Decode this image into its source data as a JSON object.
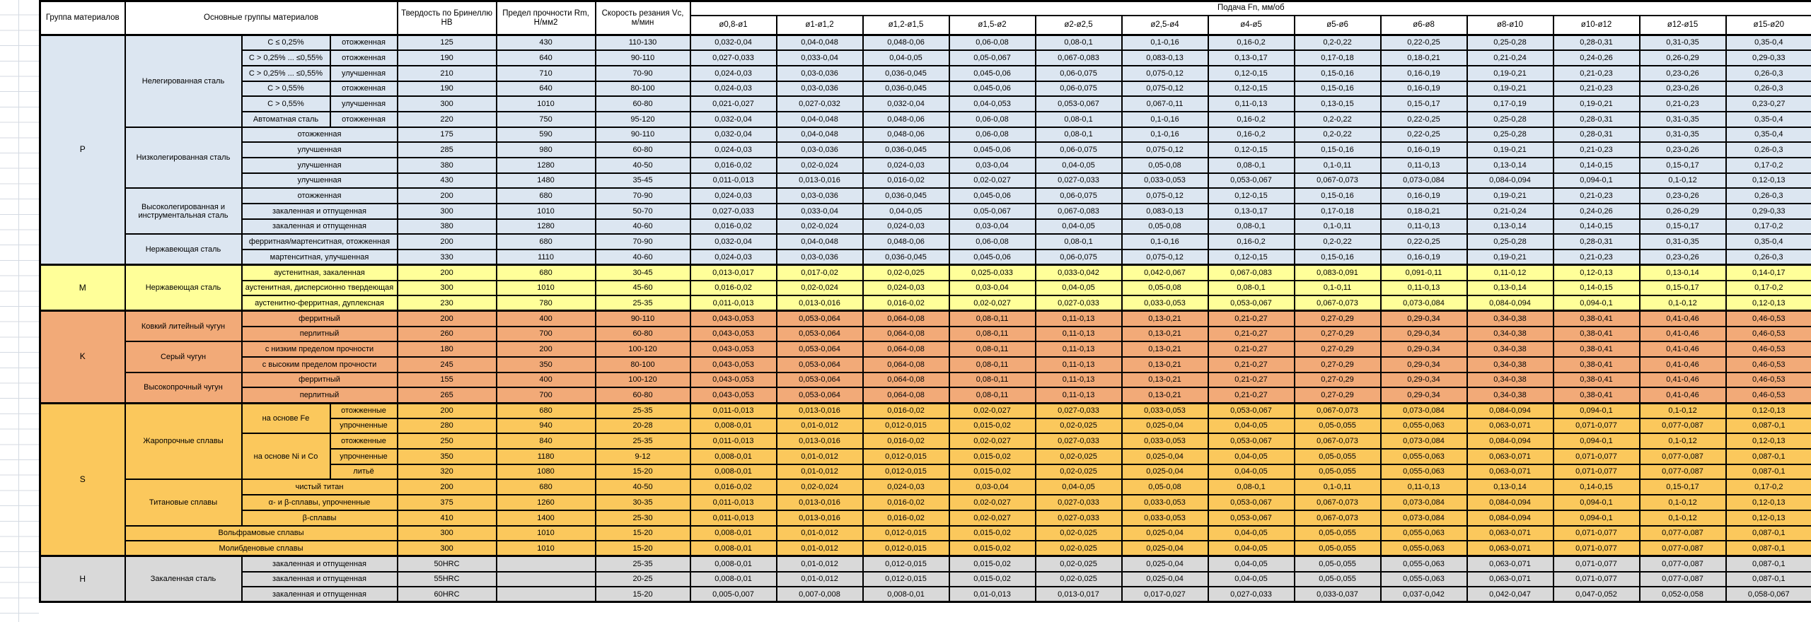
{
  "header": {
    "col_group": "Группа материалов",
    "col_materials": "Основные группы материалов",
    "col_hardness": "Твердость по Бринеллю HB",
    "col_strength": "Предел прочности Rm, Н/мм2",
    "col_speed": "Скорость резания Vc, м/мин",
    "col_feed": "Подача Fn, мм/об"
  },
  "table": {
    "diameters": [
      "ø0,8-ø1",
      "ø1-ø1,2",
      "ø1,2-ø1,5",
      "ø1,5-ø2",
      "ø2-ø2,5",
      "ø2,5-ø4",
      "ø4-ø5",
      "ø5-ø6",
      "ø6-ø8",
      "ø8-ø10",
      "ø10-ø12",
      "ø12-ø15",
      "ø15-ø20"
    ],
    "section_colors": {
      "p": "#DCE6F1",
      "m": "#FFFF99",
      "k": "#F2AA78",
      "s": "#FBC85C",
      "h": "#D9D9D9"
    },
    "feed_series": {
      "A": [
        "0,032-0,04",
        "0,04-0,048",
        "0,048-0,06",
        "0,06-0,08",
        "0,08-0,1",
        "0,1-0,16",
        "0,16-0,2",
        "0,2-0,22",
        "0,22-0,25",
        "0,25-0,28",
        "0,28-0,31",
        "0,31-0,35",
        "0,35-0,4"
      ],
      "B": [
        "0,027-0,033",
        "0,033-0,04",
        "0,04-0,05",
        "0,05-0,067",
        "0,067-0,083",
        "0,083-0,13",
        "0,13-0,17",
        "0,17-0,18",
        "0,18-0,21",
        "0,21-0,24",
        "0,24-0,26",
        "0,26-0,29",
        "0,29-0,33"
      ],
      "C": [
        "0,024-0,03",
        "0,03-0,036",
        "0,036-0,045",
        "0,045-0,06",
        "0,06-0,075",
        "0,075-0,12",
        "0,12-0,15",
        "0,15-0,16",
        "0,16-0,19",
        "0,19-0,21",
        "0,21-0,23",
        "0,23-0,26",
        "0,26-0,3"
      ],
      "D": [
        "0,021-0,027",
        "0,027-0,032",
        "0,032-0,04",
        "0,04-0,053",
        "0,053-0,067",
        "0,067-0,11",
        "0,11-0,13",
        "0,13-0,15",
        "0,15-0,17",
        "0,17-0,19",
        "0,19-0,21",
        "0,21-0,23",
        "0,23-0,27"
      ],
      "E": [
        "0,016-0,02",
        "0,02-0,024",
        "0,024-0,03",
        "0,03-0,04",
        "0,04-0,05",
        "0,05-0,08",
        "0,08-0,1",
        "0,1-0,11",
        "0,11-0,13",
        "0,13-0,14",
        "0,14-0,15",
        "0,15-0,17",
        "0,17-0,2"
      ],
      "F": [
        "0,011-0,013",
        "0,013-0,016",
        "0,016-0,02",
        "0,02-0,027",
        "0,027-0,033",
        "0,033-0,053",
        "0,053-0,067",
        "0,067-0,073",
        "0,073-0,084",
        "0,084-0,094",
        "0,094-0,1",
        "0,1-0,12",
        "0,12-0,13"
      ],
      "G": [
        "0,013-0,017",
        "0,017-0,02",
        "0,02-0,025",
        "0,025-0,033",
        "0,033-0,042",
        "0,042-0,067",
        "0,067-0,083",
        "0,083-0,091",
        "0,091-0,11",
        "0,11-0,12",
        "0,12-0,13",
        "0,13-0,14",
        "0,14-0,17"
      ],
      "H": [
        "0,043-0,053",
        "0,053-0,064",
        "0,064-0,08",
        "0,08-0,11",
        "0,11-0,13",
        "0,13-0,21",
        "0,21-0,27",
        "0,27-0,29",
        "0,29-0,34",
        "0,34-0,38",
        "0,38-0,41",
        "0,41-0,46",
        "0,46-0,53"
      ],
      "I": [
        "0,008-0,01",
        "0,01-0,012",
        "0,012-0,015",
        "0,015-0,02",
        "0,02-0,025",
        "0,025-0,04",
        "0,04-0,05",
        "0,05-0,055",
        "0,055-0,063",
        "0,063-0,071",
        "0,071-0,077",
        "0,077-0,087",
        "0,087-0,1"
      ],
      "J": [
        "0,005-0,007",
        "0,007-0,008",
        "0,008-0,01",
        "0,01-0,013",
        "0,013-0,017",
        "0,017-0,027",
        "0,027-0,033",
        "0,033-0,037",
        "0,037-0,042",
        "0,042-0,047",
        "0,047-0,052",
        "0,052-0,058",
        "0,058-0,067"
      ]
    },
    "rows": [
      {
        "sec": "p",
        "labels": [
          {
            "t": "P",
            "rs": 15,
            "c": "grp"
          },
          {
            "t": "Нелегированная сталь",
            "rs": 6,
            "c": "mat"
          },
          {
            "t": "C ≤ 0,25%"
          },
          {
            "t": "отожженная"
          }
        ],
        "hb": "125",
        "rm": "430",
        "vc": "110-130",
        "feeds": "A"
      },
      {
        "sec": "p",
        "labels": [
          {
            "t": "C > 0,25% ... ≤0,55%"
          },
          {
            "t": "отожженная"
          }
        ],
        "hb": "190",
        "rm": "640",
        "vc": "90-110",
        "feeds": "B"
      },
      {
        "sec": "p",
        "labels": [
          {
            "t": "C > 0,25% ... ≤0,55%"
          },
          {
            "t": "улучшенная"
          }
        ],
        "hb": "210",
        "rm": "710",
        "vc": "70-90",
        "feeds": "C"
      },
      {
        "sec": "p",
        "labels": [
          {
            "t": "C > 0,55%"
          },
          {
            "t": "отожженная"
          }
        ],
        "hb": "190",
        "rm": "640",
        "vc": "80-100",
        "feeds": "C"
      },
      {
        "sec": "p",
        "labels": [
          {
            "t": "C > 0,55%"
          },
          {
            "t": "улучшенная"
          }
        ],
        "hb": "300",
        "rm": "1010",
        "vc": "60-80",
        "feeds": "D"
      },
      {
        "sec": "p",
        "labels": [
          {
            "t": "Автоматная сталь"
          },
          {
            "t": "отожженная"
          }
        ],
        "hb": "220",
        "rm": "750",
        "vc": "95-120",
        "feeds": "A"
      },
      {
        "sec": "p",
        "labels": [
          {
            "t": "Низколегированная сталь",
            "rs": 4,
            "c": "mat"
          },
          {
            "t": "отожженная",
            "cs": 2
          }
        ],
        "hb": "175",
        "rm": "590",
        "vc": "90-110",
        "feeds": "A"
      },
      {
        "sec": "p",
        "labels": [
          {
            "t": "улучшенная",
            "cs": 2
          }
        ],
        "hb": "285",
        "rm": "980",
        "vc": "60-80",
        "feeds": "C"
      },
      {
        "sec": "p",
        "labels": [
          {
            "t": "улучшенная",
            "cs": 2
          }
        ],
        "hb": "380",
        "rm": "1280",
        "vc": "40-50",
        "feeds": "E"
      },
      {
        "sec": "p",
        "labels": [
          {
            "t": "улучшенная",
            "cs": 2
          }
        ],
        "hb": "430",
        "rm": "1480",
        "vc": "35-45",
        "feeds": "F"
      },
      {
        "sec": "p",
        "labels": [
          {
            "t": "Высоколегированная и инструментальная сталь",
            "rs": 3,
            "c": "mat"
          },
          {
            "t": "отожженная",
            "cs": 2
          }
        ],
        "hb": "200",
        "rm": "680",
        "vc": "70-90",
        "feeds": "C"
      },
      {
        "sec": "p",
        "labels": [
          {
            "t": "закаленная и отпущенная",
            "cs": 2
          }
        ],
        "hb": "300",
        "rm": "1010",
        "vc": "50-70",
        "feeds": "B"
      },
      {
        "sec": "p",
        "labels": [
          {
            "t": "закаленная и отпущенная",
            "cs": 2
          }
        ],
        "hb": "380",
        "rm": "1280",
        "vc": "40-60",
        "feeds": "E"
      },
      {
        "sec": "p",
        "labels": [
          {
            "t": "Нержавеющая сталь",
            "rs": 2,
            "c": "mat"
          },
          {
            "t": "ферритная/мартенситная, отожженная",
            "cs": 2
          }
        ],
        "hb": "200",
        "rm": "680",
        "vc": "70-90",
        "feeds": "A"
      },
      {
        "sec": "p",
        "labels": [
          {
            "t": "мартенситная, улучшенная",
            "cs": 2
          }
        ],
        "hb": "330",
        "rm": "1110",
        "vc": "40-60",
        "feeds": "C"
      },
      {
        "sec": "m",
        "labels": [
          {
            "t": "M",
            "rs": 3,
            "c": "grp"
          },
          {
            "t": "Нержавеющая сталь",
            "rs": 3,
            "c": "mat"
          },
          {
            "t": "аустенитная, закаленная",
            "cs": 2
          }
        ],
        "hb": "200",
        "rm": "680",
        "vc": "30-45",
        "feeds": "G"
      },
      {
        "sec": "m",
        "labels": [
          {
            "t": "аустенитная, дисперсионно твердеющая",
            "cs": 2
          }
        ],
        "hb": "300",
        "rm": "1010",
        "vc": "45-60",
        "feeds": "E"
      },
      {
        "sec": "m",
        "labels": [
          {
            "t": "аустенитно-ферритная, дуплексная",
            "cs": 2
          }
        ],
        "hb": "230",
        "rm": "780",
        "vc": "25-35",
        "feeds": "F"
      },
      {
        "sec": "k",
        "labels": [
          {
            "t": "K",
            "rs": 6,
            "c": "grp"
          },
          {
            "t": "Ковкий литейный чугун",
            "rs": 2,
            "c": "mat"
          },
          {
            "t": "ферритный",
            "cs": 2
          }
        ],
        "hb": "200",
        "rm": "400",
        "vc": "90-110",
        "feeds": "H"
      },
      {
        "sec": "k",
        "labels": [
          {
            "t": "перлитный",
            "cs": 2
          }
        ],
        "hb": "260",
        "rm": "700",
        "vc": "60-80",
        "feeds": "H"
      },
      {
        "sec": "k",
        "labels": [
          {
            "t": "Серый чугун",
            "rs": 2,
            "c": "mat"
          },
          {
            "t": "с низким пределом прочности",
            "cs": 2
          }
        ],
        "hb": "180",
        "rm": "200",
        "vc": "100-120",
        "feeds": "H"
      },
      {
        "sec": "k",
        "labels": [
          {
            "t": "с высоким пределом прочности",
            "cs": 2
          }
        ],
        "hb": "245",
        "rm": "350",
        "vc": "80-100",
        "feeds": "H"
      },
      {
        "sec": "k",
        "labels": [
          {
            "t": "Высокопрочный чугун",
            "rs": 2,
            "c": "mat"
          },
          {
            "t": "ферритный",
            "cs": 2
          }
        ],
        "hb": "155",
        "rm": "400",
        "vc": "100-120",
        "feeds": "H"
      },
      {
        "sec": "k",
        "labels": [
          {
            "t": "перлитный",
            "cs": 2
          }
        ],
        "hb": "265",
        "rm": "700",
        "vc": "60-80",
        "feeds": "H"
      },
      {
        "sec": "s",
        "labels": [
          {
            "t": "S",
            "rs": 10,
            "c": "grp"
          },
          {
            "t": "Жаропрочные сплавы",
            "rs": 5,
            "c": "mat"
          },
          {
            "t": "на основе Fe",
            "rs": 2
          },
          {
            "t": "отожженные"
          }
        ],
        "hb": "200",
        "rm": "680",
        "vc": "25-35",
        "feeds": "F"
      },
      {
        "sec": "s",
        "labels": [
          {
            "t": "упрочненные"
          }
        ],
        "hb": "280",
        "rm": "940",
        "vc": "20-28",
        "feeds": "I"
      },
      {
        "sec": "s",
        "labels": [
          {
            "t": "на основе Ni и Co",
            "rs": 3
          },
          {
            "t": "отожженные"
          }
        ],
        "hb": "250",
        "rm": "840",
        "vc": "25-35",
        "feeds": "F"
      },
      {
        "sec": "s",
        "labels": [
          {
            "t": "упрочненные"
          }
        ],
        "hb": "350",
        "rm": "1180",
        "vc": "9-12",
        "feeds": "I"
      },
      {
        "sec": "s",
        "labels": [
          {
            "t": "литьё"
          }
        ],
        "hb": "320",
        "rm": "1080",
        "vc": "15-20",
        "feeds": "I"
      },
      {
        "sec": "s",
        "labels": [
          {
            "t": "Титановые сплавы",
            "rs": 3,
            "c": "mat"
          },
          {
            "t": "чистый титан",
            "cs": 2
          }
        ],
        "hb": "200",
        "rm": "680",
        "vc": "40-50",
        "feeds": "E"
      },
      {
        "sec": "s",
        "labels": [
          {
            "t": "α- и β-сплавы, упрочненные",
            "cs": 2
          }
        ],
        "hb": "375",
        "rm": "1260",
        "vc": "30-35",
        "feeds": "F"
      },
      {
        "sec": "s",
        "labels": [
          {
            "t": "β-сплавы",
            "cs": 2
          }
        ],
        "hb": "410",
        "rm": "1400",
        "vc": "25-30",
        "feeds": "F"
      },
      {
        "sec": "s",
        "labels": [
          {
            "t": "Вольфрамовые сплавы",
            "cs": 3
          }
        ],
        "hb": "300",
        "rm": "1010",
        "vc": "15-20",
        "feeds": "I"
      },
      {
        "sec": "s",
        "labels": [
          {
            "t": "Молибденовые сплавы",
            "cs": 3
          }
        ],
        "hb": "300",
        "rm": "1010",
        "vc": "15-20",
        "feeds": "I"
      },
      {
        "sec": "h",
        "labels": [
          {
            "t": "H",
            "rs": 3,
            "c": "grp"
          },
          {
            "t": "Закаленная сталь",
            "rs": 3,
            "c": "mat"
          },
          {
            "t": "закаленная и отпущенная",
            "cs": 2
          }
        ],
        "hb": "50HRC",
        "rm": "",
        "vc": "25-35",
        "feeds": "I"
      },
      {
        "sec": "h",
        "labels": [
          {
            "t": "закаленная и отпущенная",
            "cs": 2
          }
        ],
        "hb": "55HRC",
        "rm": "",
        "vc": "20-25",
        "feeds": "I"
      },
      {
        "sec": "h",
        "labels": [
          {
            "t": "закаленная и отпущенная",
            "cs": 2
          }
        ],
        "hb": "60HRC",
        "rm": "",
        "vc": "15-20",
        "feeds": "J"
      }
    ]
  }
}
